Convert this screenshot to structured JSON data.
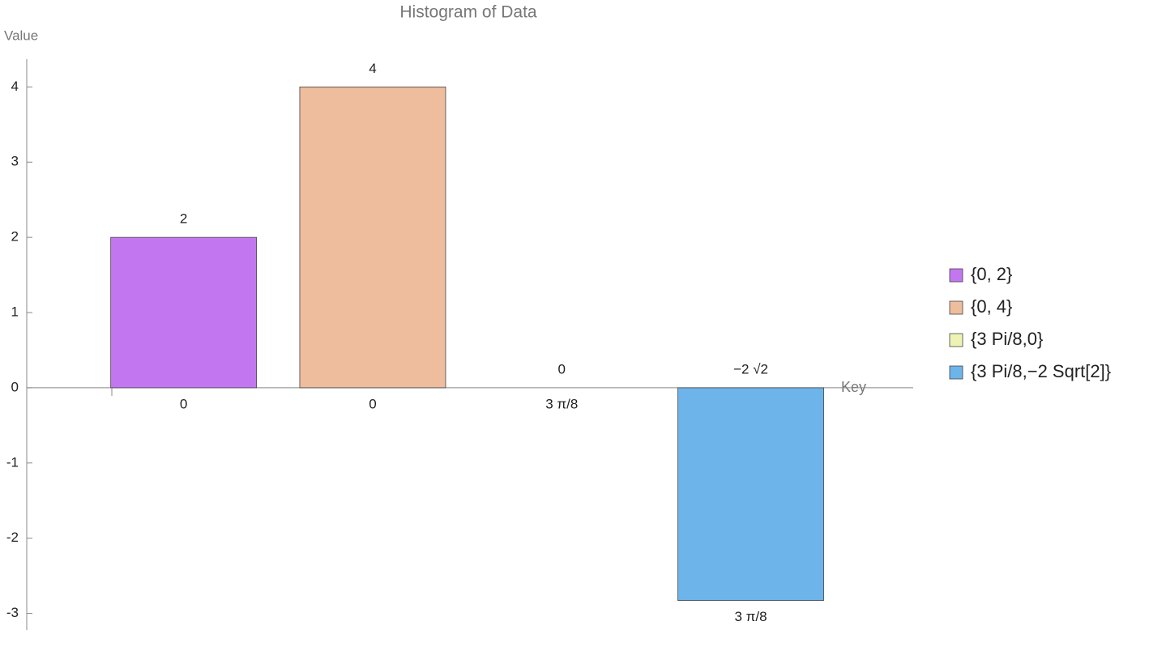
{
  "chart_data": {
    "type": "bar",
    "title": "Histogram of Data",
    "y_label": "Value",
    "x_label": "Key",
    "categories": [
      "0",
      "0",
      "3 π/8",
      "3 π/8"
    ],
    "values": [
      2,
      4,
      0,
      -2.828
    ],
    "value_labels": [
      "2",
      "4",
      "0",
      "−2 √2"
    ],
    "legend": [
      "{0, 2}",
      "{0, 4}",
      "{3 Pi/8,0}",
      "{3 Pi/8,−2 Sqrt[2]}"
    ],
    "colors": [
      "#c277f0",
      "#eebd9d",
      "#eef3b4",
      "#6db4ea"
    ],
    "ylim": [
      -3.22,
      4.37
    ],
    "yticks": [
      -3,
      -2,
      -1,
      0,
      1,
      2,
      3,
      4
    ]
  }
}
